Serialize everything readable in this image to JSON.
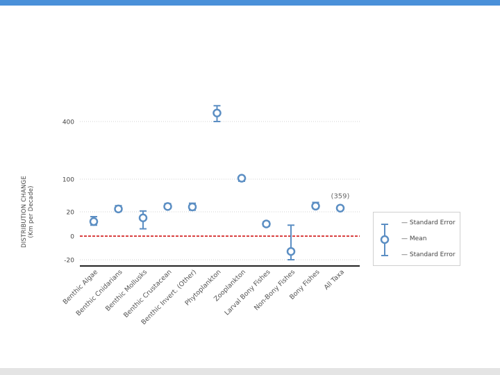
{
  "chart_data": {
    "type": "scatter",
    "title": "",
    "ylabel_lines": [
      "DISTRIBUTION CHANGE",
      "(Km per Decade)"
    ],
    "xlabel": "",
    "y_ticks": [
      400,
      100,
      20,
      0,
      -20
    ],
    "zero_line": {
      "value": 0,
      "color": "#cc0000",
      "style": "dashed"
    },
    "series": [
      {
        "name": "Mean",
        "color": "#5b8ec3"
      }
    ],
    "categories": [
      "Benthic Algae",
      "Benthic Cnidarians",
      "Benthic Mollusks",
      "Benthic Crustacean",
      "Benthic Invert. (Other)",
      "Phytoplankton",
      "Zooplankton",
      "Larval Bony Fishes",
      "Non-Bony Fishes",
      "Bony Fishes",
      "All Taxa"
    ],
    "points": [
      {
        "category": "Benthic Algae",
        "mean": 12,
        "se_low": 9,
        "se_high": 16
      },
      {
        "category": "Benthic Cnidarians",
        "mean": 27,
        "se_low": 21,
        "se_high": 35
      },
      {
        "category": "Benthic Mollusks",
        "mean": 15,
        "se_low": 6,
        "se_high": 22
      },
      {
        "category": "Benthic Crustacean",
        "mean": 33,
        "se_low": 28,
        "se_high": 40
      },
      {
        "category": "Benthic Invert. (Other)",
        "mean": 32,
        "se_low": 24,
        "se_high": 41
      },
      {
        "category": "Phytoplankton",
        "mean": 470,
        "se_low": 400,
        "se_high": 530
      },
      {
        "category": "Zooplankton",
        "mean": 105,
        "se_low": 95,
        "se_high": 112
      },
      {
        "category": "Larval Bony Fishes",
        "mean": 10,
        "se_low": 8,
        "se_high": 12
      },
      {
        "category": "Non-Bony Fishes",
        "mean": -13,
        "se_low": -20,
        "se_high": 9
      },
      {
        "category": "Bony Fishes",
        "mean": 34,
        "se_low": 28,
        "se_high": 43
      },
      {
        "category": "All Taxa",
        "mean": 29,
        "se_low": 27,
        "se_high": 31,
        "annotation": "(359)"
      }
    ],
    "legend": {
      "position": "right",
      "labels": {
        "upper": "Standard Error",
        "mean": "Mean",
        "lower": "Standard Error"
      }
    },
    "grid": true
  }
}
